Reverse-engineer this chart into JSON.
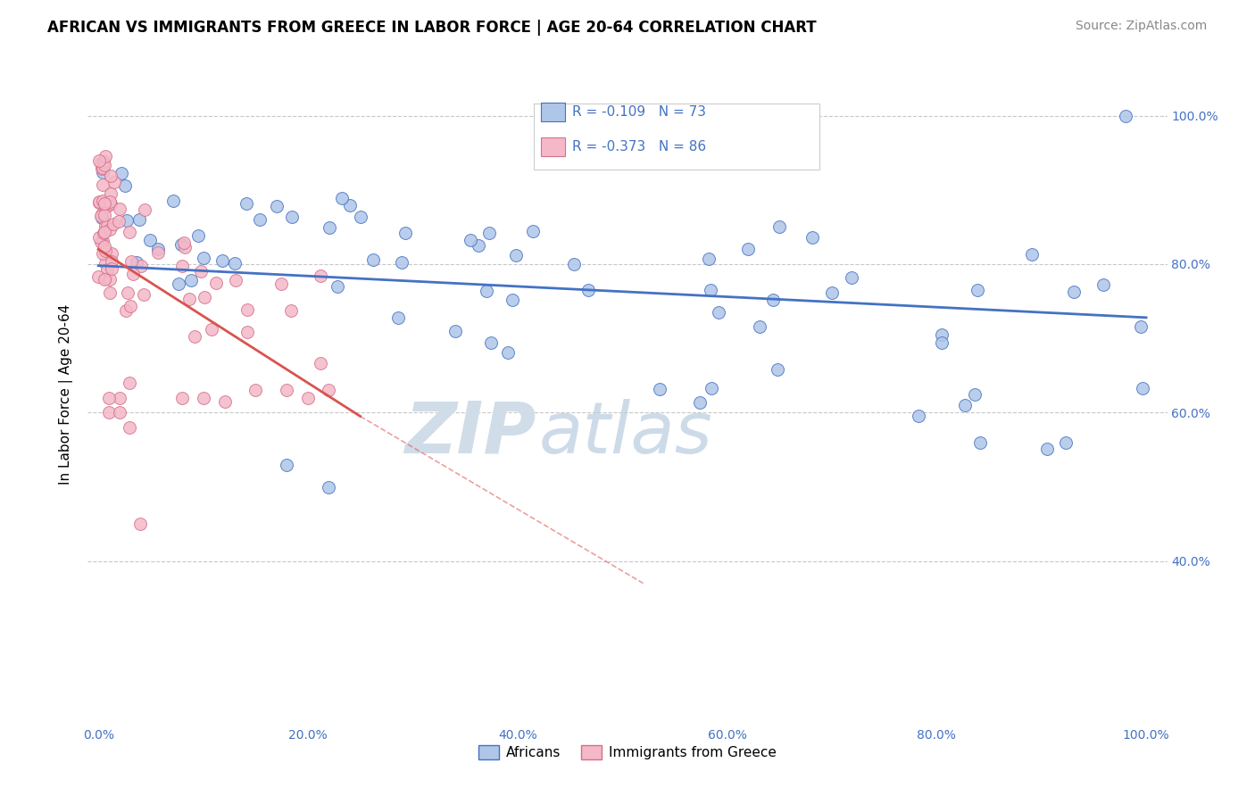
{
  "title": "AFRICAN VS IMMIGRANTS FROM GREECE IN LABOR FORCE | AGE 20-64 CORRELATION CHART",
  "source": "Source: ZipAtlas.com",
  "ylabel": "In Labor Force | Age 20-64",
  "legend_label1": "Africans",
  "legend_label2": "Immigrants from Greece",
  "R1": -0.109,
  "N1": 73,
  "R2": -0.373,
  "N2": 86,
  "color_blue": "#aec6e8",
  "color_pink": "#f4b8c8",
  "line_color_blue": "#4472c4",
  "line_color_pink": "#d9534f",
  "watermark_color": "#d0dde8",
  "background_color": "#ffffff",
  "grid_color": "#c8c8c8",
  "title_fontsize": 12,
  "axis_label_fontsize": 11,
  "tick_fontsize": 10,
  "source_fontsize": 10
}
